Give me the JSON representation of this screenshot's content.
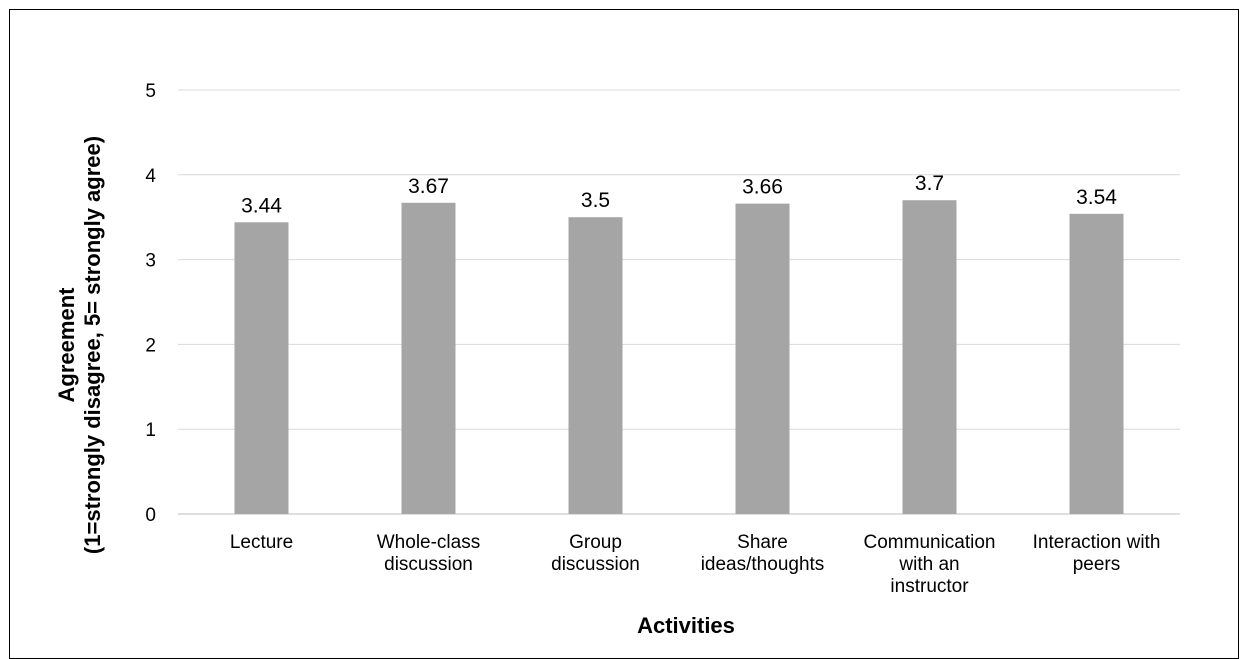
{
  "chart_data": {
    "type": "bar",
    "title": "",
    "xlabel": "Activities",
    "ylabel_lines": [
      "Agreement",
      "(1=strongly disagree, 5= strongly agree)"
    ],
    "categories": [
      [
        "Lecture"
      ],
      [
        "Whole-class",
        "discussion"
      ],
      [
        "Group",
        "discussion"
      ],
      [
        "Share",
        "ideas/thoughts"
      ],
      [
        "Communication",
        "with an",
        "instructor"
      ],
      [
        "Interaction with",
        "peers"
      ]
    ],
    "values": [
      3.44,
      3.67,
      3.5,
      3.66,
      3.7,
      3.54
    ],
    "data_labels": [
      "3.44",
      "3.67",
      "3.5",
      "3.66",
      "3.7",
      "3.54"
    ],
    "ylim": [
      0,
      5
    ],
    "yticks": [
      0,
      1,
      2,
      3,
      4,
      5
    ],
    "grid": true,
    "legend": "none",
    "colors": {
      "bar": "#a5a5a5",
      "grid": "#d9d9d9",
      "axis": "#bfbfbf",
      "frame": "#000000"
    }
  }
}
